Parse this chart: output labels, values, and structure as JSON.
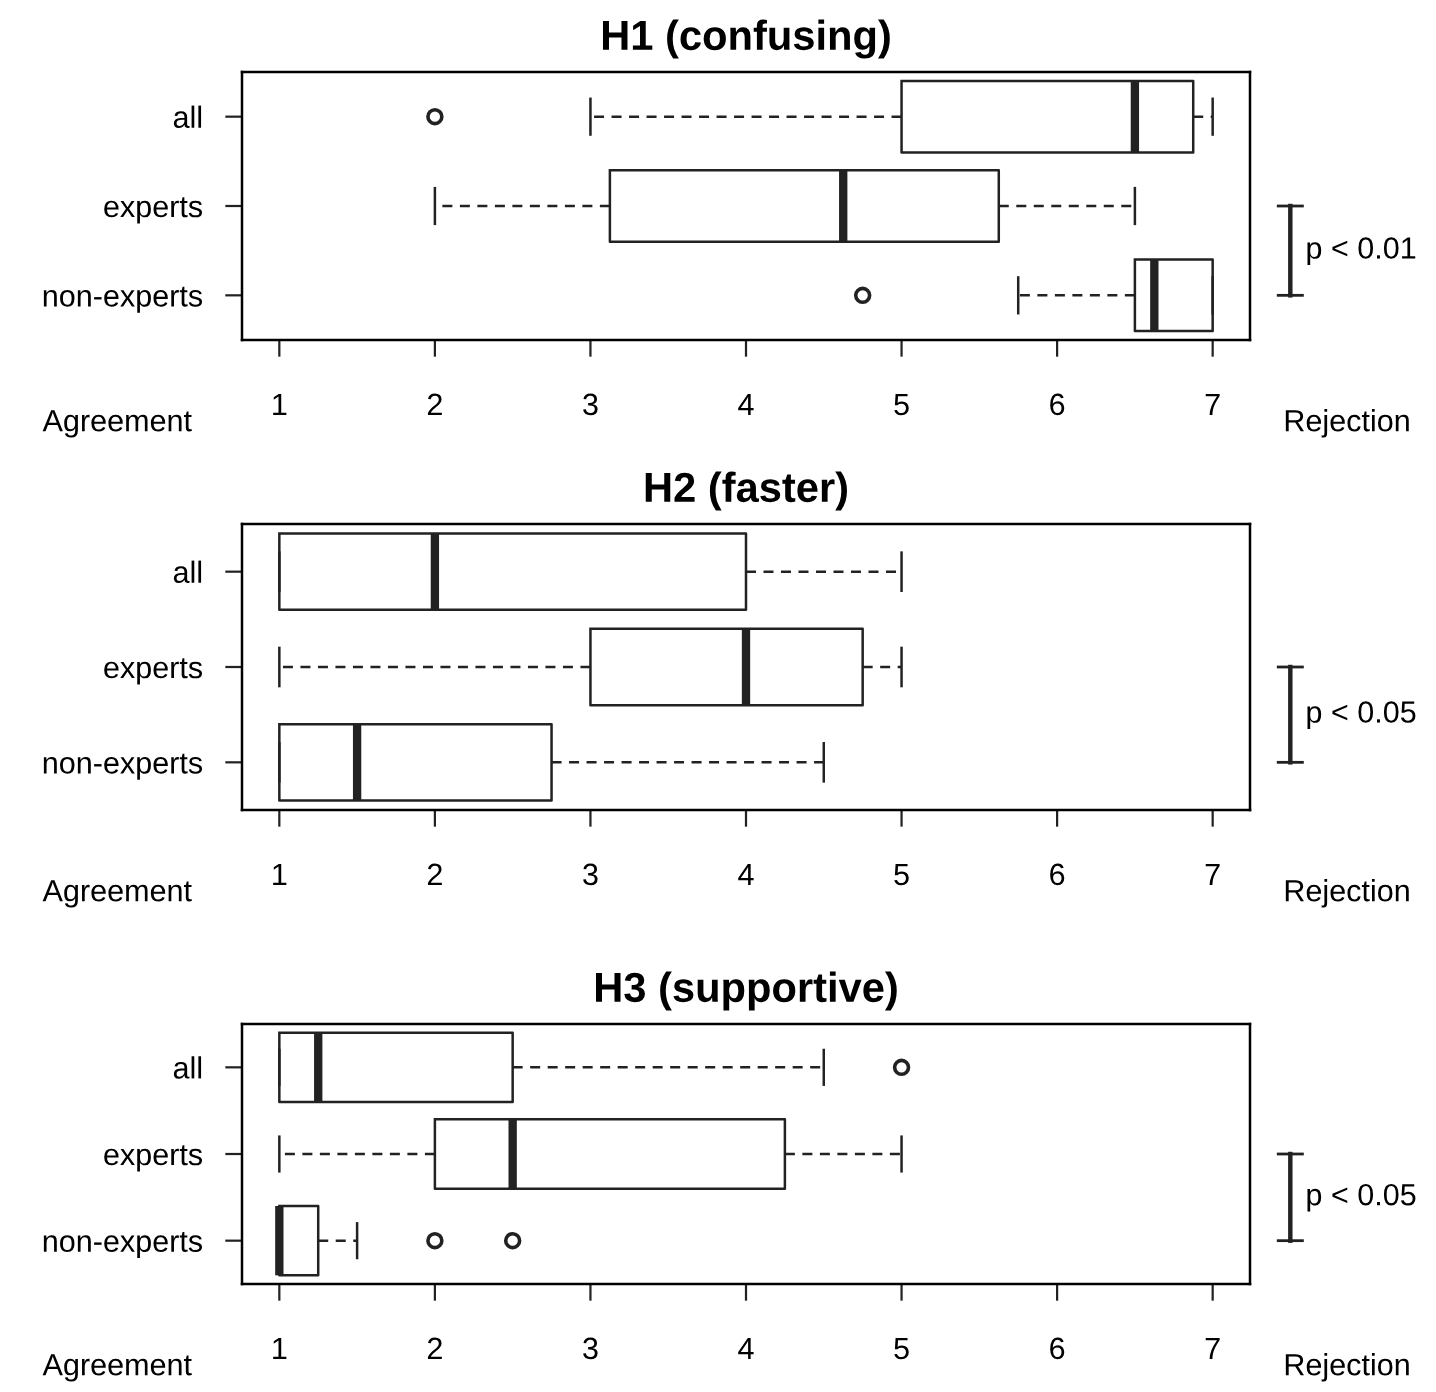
{
  "chart_data": [
    {
      "type": "box",
      "orientation": "horizontal",
      "title": "H1 (confusing)",
      "categories": [
        "all",
        "experts",
        "non-experts"
      ],
      "boxes": [
        {
          "low": 3,
          "q1": 5,
          "median": 6.5,
          "q3": 6.875,
          "high": 7,
          "outliers": [
            2
          ]
        },
        {
          "low": 2,
          "q1": 3.125,
          "median": 4.625,
          "q3": 5.625,
          "high": 6.5
        },
        {
          "low": 5.75,
          "q1": 6.5,
          "median": 6.625,
          "q3": 7,
          "high": 7,
          "outliers": [
            4.75
          ]
        }
      ],
      "xlim": [
        0.76,
        7.24
      ],
      "xticks": [
        1,
        2,
        3,
        4,
        5,
        6,
        7
      ],
      "annotations": [
        "Agreement",
        "Rejection",
        "p < 0.01"
      ]
    },
    {
      "type": "box",
      "orientation": "horizontal",
      "title": "H2 (faster)",
      "categories": [
        "all",
        "experts",
        "non-experts"
      ],
      "boxes": [
        {
          "low": 1,
          "q1": 1,
          "median": 2,
          "q3": 4,
          "high": 5
        },
        {
          "low": 1,
          "q1": 3,
          "median": 4,
          "q3": 4.75,
          "high": 5
        },
        {
          "low": 1,
          "q1": 1,
          "median": 1.5,
          "q3": 2.75,
          "high": 4.5
        }
      ],
      "xlim": [
        0.76,
        7.24
      ],
      "xticks": [
        1,
        2,
        3,
        4,
        5,
        6,
        7
      ],
      "annotations": [
        "Agreement",
        "Rejection",
        "p < 0.05"
      ]
    },
    {
      "type": "box",
      "orientation": "horizontal",
      "title": "H3 (supportive)",
      "categories": [
        "all",
        "experts",
        "non-experts"
      ],
      "boxes": [
        {
          "low": 1,
          "q1": 1,
          "median": 1.25,
          "q3": 2.5,
          "high": 4.5,
          "outliers": [
            5
          ]
        },
        {
          "low": 1,
          "q1": 2,
          "median": 2.5,
          "q3": 4.25,
          "high": 5
        },
        {
          "low": 1,
          "q1": 1,
          "median": 1,
          "q3": 1.25,
          "high": 1.5,
          "outliers": [
            2,
            2.5
          ]
        }
      ],
      "xlim": [
        0.76,
        7.24
      ],
      "xticks": [
        1,
        2,
        3,
        4,
        5,
        6,
        7
      ],
      "annotations": [
        "Agreement",
        "Rejection",
        "p < 0.05"
      ]
    }
  ]
}
